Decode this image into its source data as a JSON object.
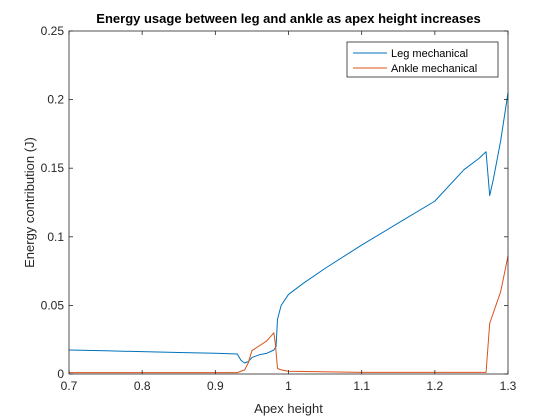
{
  "chart_data": {
    "type": "line",
    "title": "Energy usage between leg and ankle as apex height increases",
    "xlabel": "Apex height",
    "ylabel": "Energy contribution (J)",
    "xlim": [
      0.7,
      1.3
    ],
    "ylim": [
      0,
      0.25
    ],
    "xticks": [
      0.7,
      0.8,
      0.9,
      1,
      1.1,
      1.2,
      1.3
    ],
    "xtick_labels": [
      "0.7",
      "0.8",
      "0.9",
      "1",
      "1.1",
      "1.2",
      "1.3"
    ],
    "yticks": [
      0,
      0.05,
      0.1,
      0.15,
      0.2,
      0.25
    ],
    "ytick_labels": [
      "0",
      "0.05",
      "0.1",
      "0.15",
      "0.2",
      "0.25"
    ],
    "grid": false,
    "legend_position": "top-right",
    "series": [
      {
        "name": "Leg mechanical",
        "color": "#0072BD",
        "x": [
          0.7,
          0.75,
          0.8,
          0.85,
          0.9,
          0.93,
          0.935,
          0.94,
          0.945,
          0.95,
          0.96,
          0.97,
          0.98,
          0.983,
          0.985,
          0.99,
          1.0,
          1.02,
          1.05,
          1.1,
          1.15,
          1.2,
          1.24,
          1.26,
          1.27,
          1.275,
          1.28,
          1.29,
          1.3
        ],
        "y": [
          0.0175,
          0.0169,
          0.0163,
          0.0157,
          0.0151,
          0.0146,
          0.01,
          0.008,
          0.009,
          0.012,
          0.014,
          0.015,
          0.0175,
          0.02,
          0.04,
          0.05,
          0.058,
          0.066,
          0.077,
          0.094,
          0.11,
          0.126,
          0.149,
          0.157,
          0.162,
          0.13,
          0.142,
          0.17,
          0.205
        ]
      },
      {
        "name": "Ankle mechanical",
        "color": "#D95319",
        "x": [
          0.7,
          0.8,
          0.9,
          0.93,
          0.94,
          0.945,
          0.95,
          0.97,
          0.98,
          0.982,
          0.985,
          0.99,
          1.0,
          1.1,
          1.2,
          1.27,
          1.275,
          1.29,
          1.3
        ],
        "y": [
          0.001,
          0.001,
          0.001,
          0.001,
          0.003,
          0.008,
          0.017,
          0.024,
          0.03,
          0.022,
          0.004,
          0.003,
          0.002,
          0.0012,
          0.0012,
          0.0012,
          0.037,
          0.06,
          0.086
        ]
      }
    ]
  }
}
